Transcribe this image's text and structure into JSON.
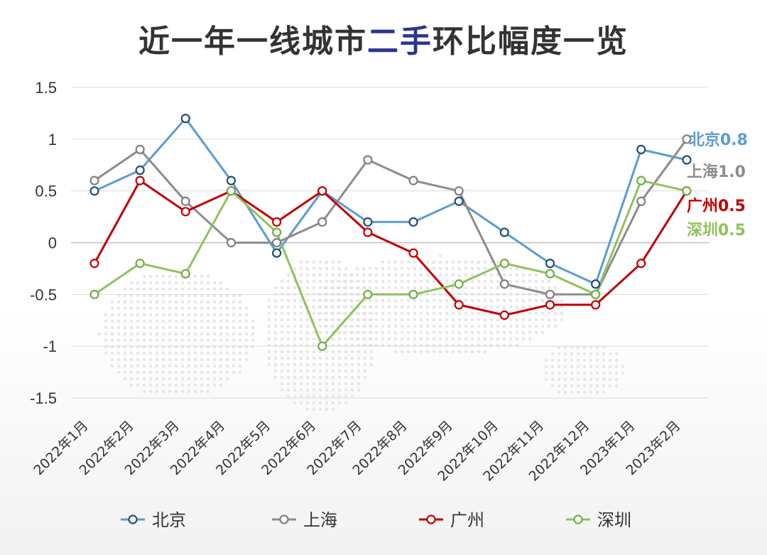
{
  "title": {
    "part1": "近一年一线城市",
    "accent": "二手",
    "part2": "环比幅度一览"
  },
  "chart_data": {
    "type": "line",
    "title": "近一年一线城市二手环比幅度一览",
    "xlabel": "",
    "ylabel": "",
    "categories": [
      "2022年1月",
      "2022年2月",
      "2022年3月",
      "2022年4月",
      "2022年5月",
      "2022年6月",
      "2022年7月",
      "2022年8月",
      "2022年9月",
      "2022年10月",
      "2022年11月",
      "2022年12月",
      "2023年1月",
      "2023年2月"
    ],
    "ylim": [
      -1.5,
      1.5
    ],
    "yticks": [
      1.5,
      1,
      0.5,
      0,
      -0.5,
      -1,
      -1.5
    ],
    "ytick_labels": [
      "1.5",
      "1",
      "0.5",
      "0",
      "-0.5",
      "-1",
      "-1.5"
    ],
    "grid": true,
    "legend_position": "bottom",
    "series": [
      {
        "name": "北京",
        "color": "#5b9bd5",
        "marker_color": "#1f4e79",
        "end_label": "北京0.8",
        "values": [
          0.5,
          0.7,
          1.2,
          0.6,
          -0.1,
          0.5,
          0.2,
          0.2,
          0.4,
          0.1,
          -0.2,
          -0.4,
          0.9,
          0.8
        ]
      },
      {
        "name": "上海",
        "color": "#8c8c8c",
        "marker_color": "#7f7f7f",
        "end_label": "上海1.0",
        "values": [
          0.6,
          0.9,
          0.4,
          0.0,
          0.0,
          0.2,
          0.8,
          0.6,
          0.5,
          -0.4,
          -0.5,
          -0.5,
          0.4,
          1.0
        ]
      },
      {
        "name": "广州",
        "color": "#c00000",
        "marker_color": "#c00000",
        "end_label": "广州0.5",
        "values": [
          -0.2,
          0.6,
          0.3,
          0.5,
          0.2,
          0.5,
          0.1,
          -0.1,
          -0.6,
          -0.7,
          -0.6,
          -0.6,
          -0.2,
          0.5
        ]
      },
      {
        "name": "深圳",
        "color": "#8fc35a",
        "marker_color": "#70ad47",
        "end_label": "深圳0.5",
        "values": [
          -0.5,
          -0.2,
          -0.3,
          0.5,
          0.1,
          -1.0,
          -0.5,
          -0.5,
          -0.4,
          -0.2,
          -0.3,
          -0.5,
          0.6,
          0.5
        ]
      }
    ]
  }
}
